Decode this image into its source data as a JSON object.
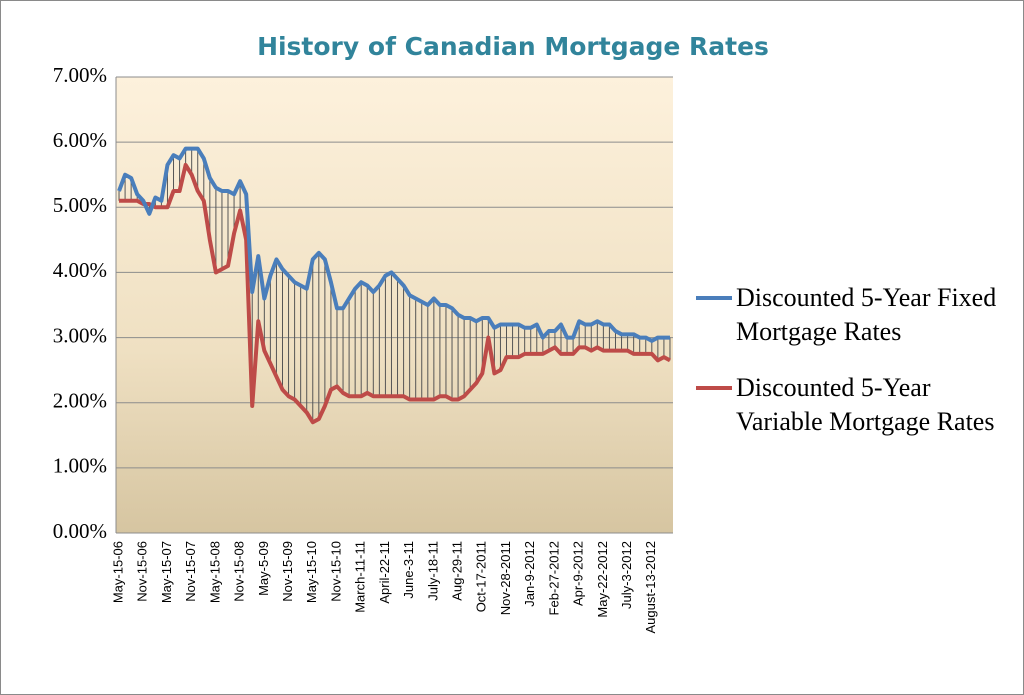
{
  "chart_data": {
    "type": "line",
    "title": "History of Canadian Mortgage Rates",
    "categories": [
      "May-15-06",
      null,
      null,
      null,
      "Nov-15-06",
      null,
      null,
      null,
      "May-15-07",
      null,
      null,
      null,
      "Nov-15-07",
      null,
      null,
      null,
      "May-15-08",
      null,
      null,
      null,
      "Nov-15-08",
      null,
      null,
      null,
      "May-5-09",
      null,
      null,
      null,
      "Nov-15-09",
      null,
      null,
      null,
      "May-15-10",
      null,
      null,
      null,
      "Nov-15-10",
      null,
      null,
      null,
      "March-11-11",
      null,
      null,
      null,
      "April-22-11",
      null,
      null,
      null,
      "June-3-11",
      null,
      null,
      null,
      "July-18-11",
      null,
      null,
      null,
      "Aug-29-11",
      null,
      null,
      null,
      "Oct-17-2011",
      null,
      null,
      null,
      "Nov-28-2011",
      null,
      null,
      null,
      "Jan-9-2012",
      null,
      null,
      null,
      "Feb-27-2012",
      null,
      null,
      null,
      "Apr-9-2012",
      null,
      null,
      null,
      "May-22-2012",
      null,
      null,
      null,
      "July-3-2012",
      null,
      null,
      null,
      "August-13-2012",
      null,
      null,
      null
    ],
    "series": [
      {
        "name": "Discounted 5-Year Fixed Mortgage Rates",
        "color": "#4a7ebb",
        "values": [
          5.25,
          5.5,
          5.45,
          5.2,
          5.1,
          4.9,
          5.15,
          5.1,
          5.65,
          5.8,
          5.75,
          5.9,
          5.9,
          5.9,
          5.75,
          5.45,
          5.3,
          5.25,
          5.25,
          5.2,
          5.4,
          5.2,
          3.7,
          4.25,
          3.6,
          3.95,
          4.2,
          4.05,
          3.95,
          3.85,
          3.8,
          3.75,
          4.2,
          4.3,
          4.2,
          3.85,
          3.45,
          3.45,
          3.6,
          3.75,
          3.85,
          3.8,
          3.7,
          3.8,
          3.95,
          4.0,
          3.9,
          3.8,
          3.65,
          3.6,
          3.55,
          3.5,
          3.6,
          3.5,
          3.5,
          3.45,
          3.35,
          3.3,
          3.3,
          3.25,
          3.3,
          3.3,
          3.15,
          3.2,
          3.2,
          3.2,
          3.2,
          3.15,
          3.15,
          3.2,
          3.0,
          3.1,
          3.1,
          3.2,
          3.0,
          3.0,
          3.25,
          3.2,
          3.2,
          3.25,
          3.2,
          3.2,
          3.1,
          3.05,
          3.05,
          3.05,
          3.0,
          3.0,
          2.95,
          3.0,
          3.0,
          3.0
        ]
      },
      {
        "name": "Discounted 5-Year Variable Mortgage Rates",
        "color": "#be4b48",
        "values": [
          5.1,
          5.1,
          5.1,
          5.1,
          5.05,
          5.05,
          5.0,
          5.0,
          5.0,
          5.25,
          5.25,
          5.65,
          5.5,
          5.25,
          5.1,
          4.5,
          4.0,
          4.05,
          4.1,
          4.6,
          4.95,
          4.5,
          1.95,
          3.25,
          2.8,
          2.6,
          2.4,
          2.2,
          2.1,
          2.05,
          1.95,
          1.85,
          1.7,
          1.75,
          1.95,
          2.2,
          2.25,
          2.15,
          2.1,
          2.1,
          2.1,
          2.15,
          2.1,
          2.1,
          2.1,
          2.1,
          2.1,
          2.1,
          2.05,
          2.05,
          2.05,
          2.05,
          2.05,
          2.1,
          2.1,
          2.05,
          2.05,
          2.1,
          2.2,
          2.3,
          2.45,
          3.0,
          2.45,
          2.5,
          2.7,
          2.7,
          2.7,
          2.75,
          2.75,
          2.75,
          2.75,
          2.8,
          2.85,
          2.75,
          2.75,
          2.75,
          2.85,
          2.85,
          2.8,
          2.85,
          2.8,
          2.8,
          2.8,
          2.8,
          2.8,
          2.75,
          2.75,
          2.75,
          2.75,
          2.65,
          2.7,
          2.65
        ]
      }
    ],
    "ylim": [
      0,
      7
    ],
    "yticks": [
      {
        "value": 0,
        "label": "0.00%"
      },
      {
        "value": 1,
        "label": "1.00%"
      },
      {
        "value": 2,
        "label": "2.00%"
      },
      {
        "value": 3,
        "label": "3.00%"
      },
      {
        "value": 4,
        "label": "4.00%"
      },
      {
        "value": 5,
        "label": "5.00%"
      },
      {
        "value": 6,
        "label": "6.00%"
      },
      {
        "value": 7,
        "label": "7.00%"
      }
    ],
    "grid": true,
    "drop_lines": true,
    "legend": "right"
  }
}
